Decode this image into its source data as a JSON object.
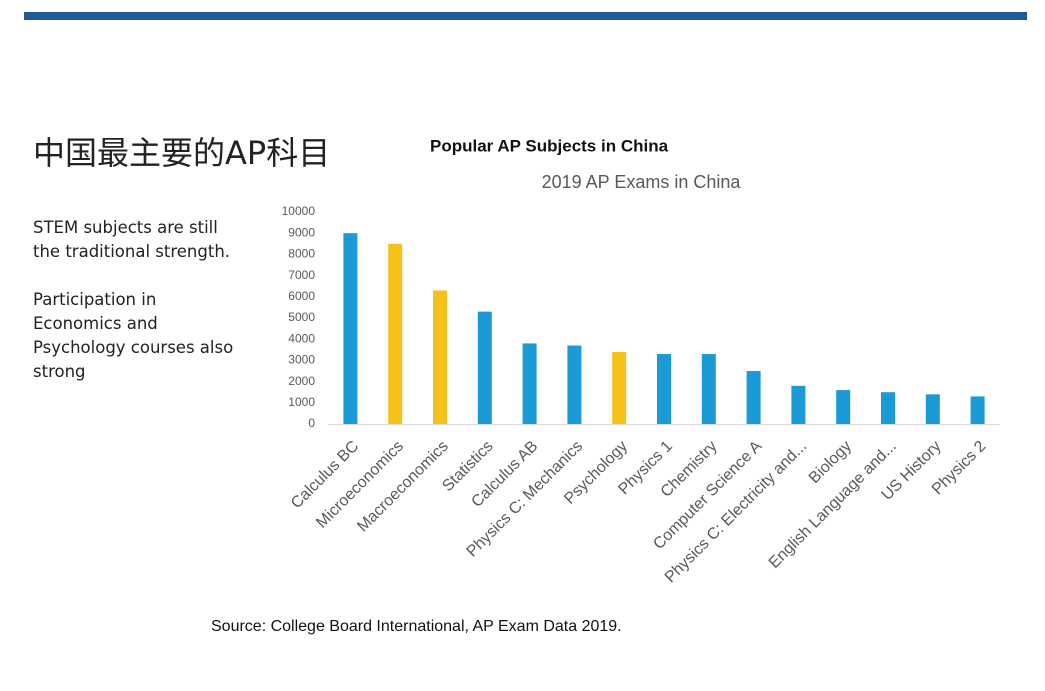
{
  "heading": "中国最主要的AP科目",
  "side_text": [
    "STEM subjects are still the traditional strength.",
    "Participation in Economics and Psychology courses also strong"
  ],
  "source": "Source: College Board International, AP Exam Data 2019.",
  "chart_data": {
    "type": "bar",
    "title": "Popular AP Subjects in China",
    "subtitle": "2019 AP Exams in China",
    "categories": [
      "Calculus BC",
      "Microeconomics",
      "Macroeconomics",
      "Statistics",
      "Calculus AB",
      "Physics C: Mechanics",
      "Psychology",
      "Physics 1",
      "Chemistry",
      "Computer Science A",
      "Physics C: Electricity and...",
      "Biology",
      "English Language and...",
      "US History",
      "Physics 2"
    ],
    "values": [
      9000,
      8500,
      6300,
      5300,
      3800,
      3700,
      3400,
      3300,
      3300,
      2500,
      1800,
      1600,
      1500,
      1400,
      1300
    ],
    "colors": [
      "#1a9ad6",
      "#f6c119",
      "#f6c119",
      "#1a9ad6",
      "#1a9ad6",
      "#1a9ad6",
      "#f6c119",
      "#1a9ad6",
      "#1a9ad6",
      "#1a9ad6",
      "#1a9ad6",
      "#1a9ad6",
      "#1a9ad6",
      "#1a9ad6",
      "#1a9ad6"
    ],
    "ylim": [
      0,
      10000
    ],
    "yticks": [
      0,
      1000,
      2000,
      3000,
      4000,
      5000,
      6000,
      7000,
      8000,
      9000,
      10000
    ],
    "grid": false
  }
}
